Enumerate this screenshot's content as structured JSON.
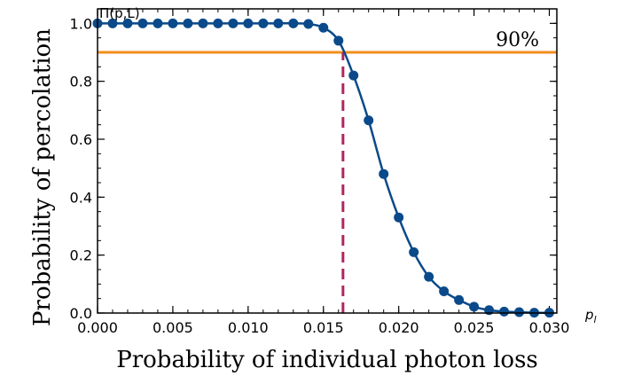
{
  "chart_data": {
    "type": "line",
    "title": "",
    "xlabel": "Probability of individual photon loss",
    "ylabel": "Probability of percolation",
    "x_axis_symbol": "p_l",
    "x_axis_symbol_main": "p",
    "x_axis_symbol_sub": "l",
    "y_axis_symbol": "Π(p,L)",
    "xlim": [
      0.0,
      0.0305
    ],
    "ylim": [
      0.0,
      1.05
    ],
    "x_ticks": [
      0.0,
      0.005,
      0.01,
      0.015,
      0.02,
      0.025,
      0.03
    ],
    "x_tick_labels": [
      "0.000",
      "0.005",
      "0.010",
      "0.015",
      "0.020",
      "0.025",
      "0.030"
    ],
    "y_ticks": [
      0.0,
      0.2,
      0.4,
      0.6,
      0.8,
      1.0
    ],
    "y_tick_labels": [
      "0.0",
      "0.2",
      "0.4",
      "0.6",
      "0.8",
      "1.0"
    ],
    "grid": false,
    "series": [
      {
        "name": "Π(p,L)",
        "color": "#0a4a8a",
        "x": [
          0.0,
          0.001,
          0.002,
          0.003,
          0.004,
          0.005,
          0.006,
          0.007,
          0.008,
          0.009,
          0.01,
          0.011,
          0.012,
          0.013,
          0.014,
          0.015,
          0.016,
          0.017,
          0.018,
          0.019,
          0.02,
          0.021,
          0.022,
          0.023,
          0.024,
          0.025,
          0.026,
          0.027,
          0.028,
          0.029,
          0.03
        ],
        "y": [
          1.0,
          1.0,
          1.0,
          1.0,
          1.0,
          1.0,
          1.0,
          1.0,
          1.0,
          1.0,
          1.0,
          1.0,
          1.0,
          1.0,
          0.998,
          0.985,
          0.94,
          0.82,
          0.665,
          0.48,
          0.33,
          0.21,
          0.125,
          0.075,
          0.045,
          0.022,
          0.01,
          0.005,
          0.003,
          0.001,
          0.001
        ]
      }
    ],
    "reference_line": {
      "y": 0.9,
      "label": "90%",
      "color": "#f28e1c"
    },
    "threshold_line": {
      "x": 0.0163,
      "color": "#b0265e"
    }
  }
}
